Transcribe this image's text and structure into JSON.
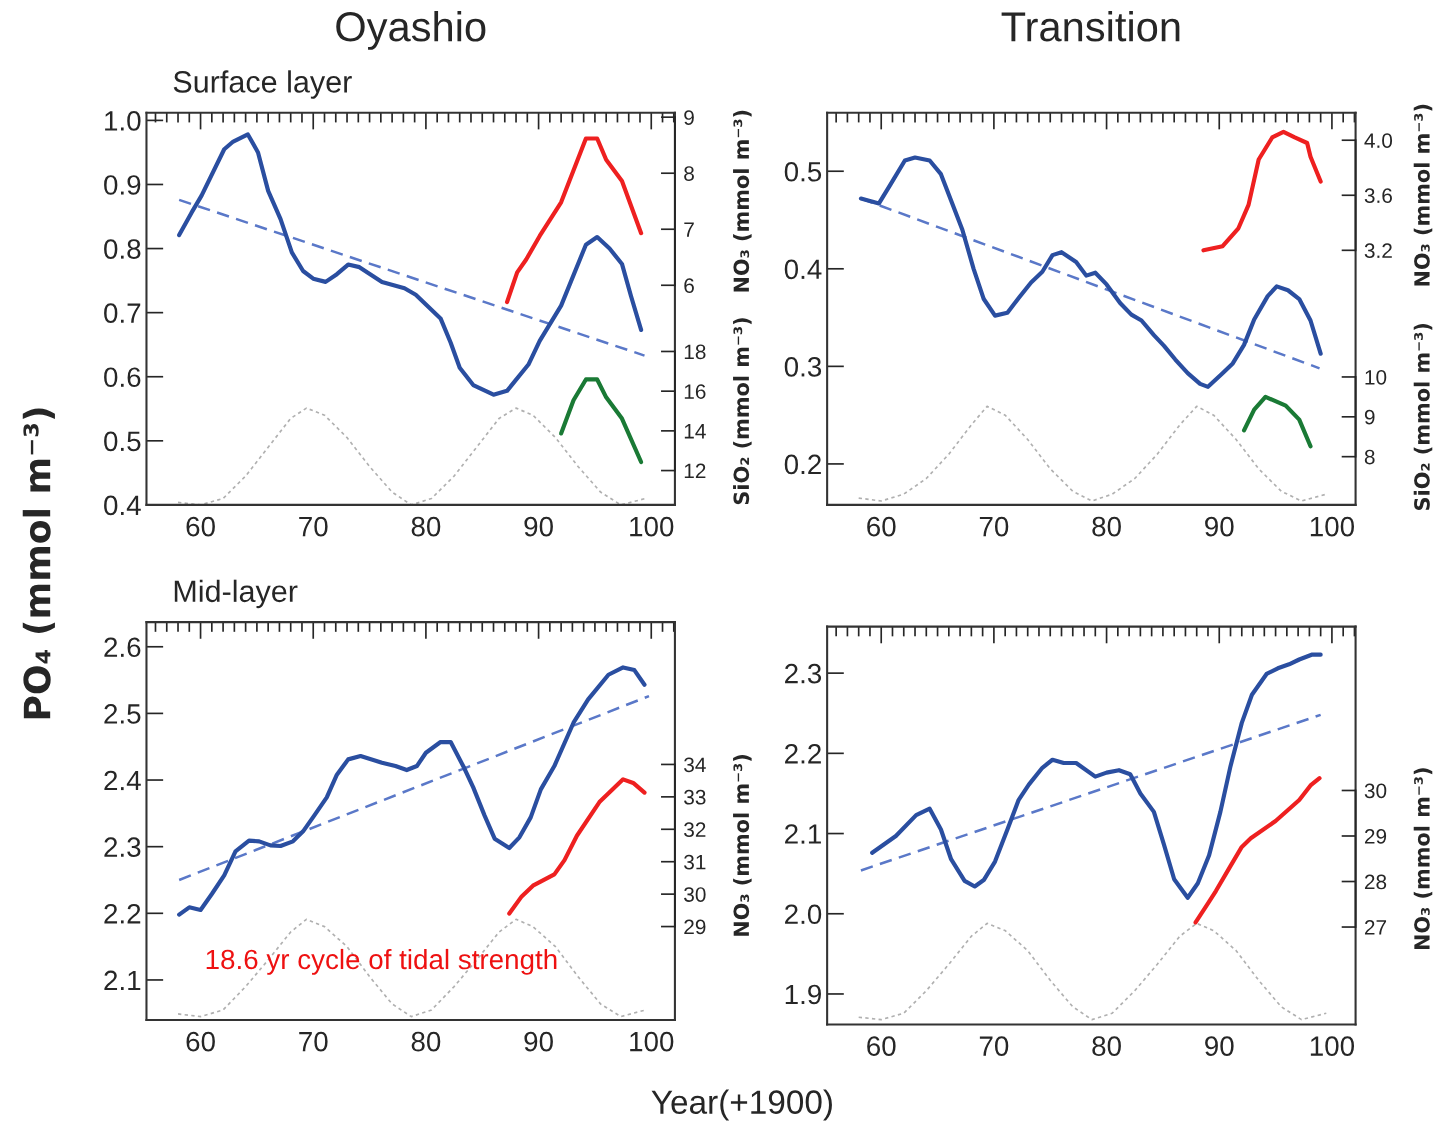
{
  "chart_data": [
    {
      "type": "line",
      "title": "Oyashio",
      "subtitle": "Surface layer",
      "ylabel": "PO₄ (mmol m⁻³)",
      "y2label": "NO₃ (mmol m⁻³)",
      "y3label": "SiO₂ (mmol m⁻³)",
      "xlim": [
        55.2,
        102.1
      ],
      "xticks": [
        60,
        70,
        80,
        90,
        100
      ],
      "ylim": [
        0.4,
        1.012
      ],
      "yticks": [
        0.4,
        0.5,
        0.6,
        0.7,
        0.8,
        0.9,
        {
          "value": 1.0,
          "label": "1.0"
        }
      ],
      "y2lim": [
        2.08,
        9.08
      ],
      "y2ticks": [
        6,
        7,
        8,
        9
      ],
      "y3lim": [
        10.27,
        30.03
      ],
      "y3ticks": [
        12,
        14,
        16,
        18
      ],
      "series": [
        {
          "color": "#b0b0b0",
          "line_style": "dotted",
          "x": [
            58.0,
            60.0,
            62.0,
            64.0,
            66.0,
            68.0,
            69.4,
            71.0,
            73.0,
            75.0,
            77.0,
            78.7,
            80.5,
            82.5,
            84.5,
            86.5,
            88.0,
            89.5,
            91.5,
            93.5,
            95.5,
            97.3,
            99.5
          ],
          "values": [
            0.404,
            0.4,
            0.41,
            0.445,
            0.49,
            0.535,
            0.551,
            0.54,
            0.505,
            0.46,
            0.42,
            0.4,
            0.41,
            0.445,
            0.49,
            0.535,
            0.551,
            0.54,
            0.505,
            0.46,
            0.42,
            0.4,
            0.41
          ]
        },
        {
          "color": "#5a78c8",
          "line_style": "dashed",
          "x": [
            58.1,
            99.4
          ],
          "values": [
            0.876,
            0.633
          ]
        },
        {
          "color": "#2a4ea0",
          "line_style": "solid",
          "x": [
            58.1,
            59.2,
            60.1,
            62.1,
            62.9,
            64.2,
            65.1,
            66.0,
            67.1,
            68.1,
            69.1,
            70.0,
            71.1,
            72.1,
            73.1,
            74.1,
            76.1,
            78.1,
            79.1,
            81.3,
            82.2,
            83.0,
            84.2,
            86.0,
            87.2,
            89.1,
            90.1,
            92.0,
            94.2,
            95.2,
            96.3,
            97.4,
            98.2,
            99.1
          ],
          "values": [
            0.821,
            0.856,
            0.883,
            0.955,
            0.967,
            0.978,
            0.95,
            0.89,
            0.846,
            0.794,
            0.765,
            0.753,
            0.748,
            0.76,
            0.775,
            0.771,
            0.748,
            0.738,
            0.728,
            0.691,
            0.653,
            0.614,
            0.587,
            0.572,
            0.578,
            0.619,
            0.656,
            0.711,
            0.806,
            0.818,
            0.8,
            0.776,
            0.726,
            0.673
          ]
        },
        {
          "color": "#ee2020",
          "line_style": "solid",
          "axis": "y2",
          "x": [
            87.2,
            88.1,
            88.9,
            90.1,
            92.0,
            94.2,
            95.2,
            96.0,
            97.4,
            99.1
          ],
          "values": [
            5.7,
            6.23,
            6.46,
            6.88,
            7.48,
            8.62,
            8.62,
            8.24,
            7.86,
            6.93
          ]
        },
        {
          "color": "#1a7a35",
          "line_style": "solid",
          "axis": "y3",
          "x": [
            92.0,
            93.1,
            94.2,
            95.2,
            96.0,
            97.4,
            99.1
          ],
          "values": [
            13.87,
            15.54,
            16.59,
            16.59,
            15.69,
            14.62,
            12.43
          ]
        }
      ]
    },
    {
      "type": "line",
      "title": "Transition",
      "y2label": "NO₃ (mmol m⁻³)",
      "y3label": "SiO₂ (mmol m⁻³)",
      "xlim": [
        55.2,
        102.1
      ],
      "xticks": [
        60,
        70,
        80,
        90,
        100
      ],
      "ylim": [
        0.158,
        0.56
      ],
      "yticks": [
        0.2,
        0.3,
        0.4,
        0.5
      ],
      "y2lim": [
        1.35,
        4.2
      ],
      "y2ticks": [
        3.2,
        3.6,
        {
          "value": 4.0,
          "label": "4.0"
        }
      ],
      "y3lim": [
        6.79,
        16.63
      ],
      "y3ticks": [
        8,
        9,
        10
      ],
      "series": [
        {
          "color": "#b0b0b0",
          "line_style": "dotted",
          "x": [
            58.0,
            60.0,
            62.0,
            64.0,
            66.0,
            68.0,
            69.4,
            71.0,
            73.0,
            75.0,
            77.0,
            78.7,
            80.5,
            82.5,
            84.5,
            86.5,
            88.0,
            89.5,
            91.5,
            93.5,
            95.5,
            97.3,
            99.5
          ],
          "values": [
            0.165,
            0.162,
            0.169,
            0.185,
            0.21,
            0.24,
            0.259,
            0.25,
            0.225,
            0.195,
            0.172,
            0.162,
            0.169,
            0.185,
            0.21,
            0.24,
            0.259,
            0.25,
            0.225,
            0.195,
            0.172,
            0.162,
            0.169
          ]
        },
        {
          "color": "#5a78c8",
          "line_style": "dashed",
          "x": [
            58.2,
            98.9
          ],
          "values": [
            0.472,
            0.298
          ]
        },
        {
          "color": "#2a4ea0",
          "line_style": "solid",
          "x": [
            58.2,
            59.8,
            60.8,
            62.1,
            63.0,
            64.3,
            65.3,
            66.2,
            67.2,
            68.2,
            69.1,
            70.1,
            71.2,
            72.2,
            73.3,
            74.3,
            75.2,
            76.0,
            77.3,
            78.2,
            79.0,
            80.0,
            81.2,
            82.2,
            83.1,
            84.2,
            85.1,
            86.1,
            87.2,
            88.3,
            89.0,
            90.2,
            91.2,
            92.2,
            93.1,
            94.3,
            95.1,
            96.1,
            97.1,
            98.1,
            99.0
          ],
          "values": [
            0.472,
            0.467,
            0.486,
            0.511,
            0.514,
            0.511,
            0.497,
            0.47,
            0.44,
            0.4,
            0.369,
            0.352,
            0.355,
            0.37,
            0.386,
            0.397,
            0.414,
            0.417,
            0.407,
            0.393,
            0.396,
            0.384,
            0.365,
            0.353,
            0.347,
            0.332,
            0.321,
            0.307,
            0.293,
            0.282,
            0.279,
            0.292,
            0.303,
            0.322,
            0.348,
            0.372,
            0.382,
            0.378,
            0.369,
            0.347,
            0.313
          ]
        },
        {
          "color": "#ee2020",
          "line_style": "solid",
          "axis": "y2",
          "x": [
            88.6,
            90.3,
            91.7,
            92.6,
            93.5,
            94.7,
            95.7,
            96.7,
            97.8,
            98.1,
            99.0
          ],
          "values": [
            3.2,
            3.23,
            3.36,
            3.53,
            3.86,
            4.02,
            4.06,
            4.02,
            3.98,
            3.88,
            3.7
          ]
        },
        {
          "color": "#1a7a35",
          "line_style": "solid",
          "axis": "y3",
          "x": [
            92.2,
            93.1,
            94.1,
            95.9,
            97.1,
            98.1
          ],
          "values": [
            8.66,
            9.18,
            9.5,
            9.28,
            8.93,
            8.26
          ]
        }
      ]
    },
    {
      "type": "line",
      "subtitle": "Mid-layer",
      "xlabel": "Year(+1900)",
      "y2label": "NO₃ (mmol m⁻³)",
      "annotations": [
        "18.6 yr cycle of tidal strength"
      ],
      "xlim": [
        55.2,
        102.1
      ],
      "xticks": [
        60,
        70,
        80,
        90,
        100
      ],
      "ylim": [
        2.04,
        2.637
      ],
      "yticks": [
        2.1,
        2.2,
        2.3,
        2.4,
        2.5,
        2.6
      ],
      "y2lim": [
        26.12,
        38.39
      ],
      "y2ticks": [
        29,
        30,
        31,
        32,
        33,
        34
      ],
      "series": [
        {
          "color": "#b0b0b0",
          "line_style": "dotted",
          "x": [
            58.0,
            60.0,
            62.0,
            64.0,
            66.0,
            68.0,
            69.4,
            71.0,
            73.0,
            75.0,
            77.0,
            78.7,
            80.5,
            82.5,
            84.5,
            86.5,
            88.0,
            89.5,
            91.5,
            93.5,
            95.5,
            97.3,
            99.5
          ],
          "values": [
            2.049,
            2.045,
            2.055,
            2.09,
            2.13,
            2.172,
            2.191,
            2.18,
            2.15,
            2.105,
            2.064,
            2.045,
            2.055,
            2.09,
            2.13,
            2.172,
            2.191,
            2.18,
            2.15,
            2.105,
            2.064,
            2.045,
            2.055
          ]
        },
        {
          "color": "#5a78c8",
          "line_style": "dashed",
          "x": [
            58.1,
            99.8
          ],
          "values": [
            2.25,
            2.526
          ]
        },
        {
          "color": "#2a4ea0",
          "line_style": "solid",
          "x": [
            58.1,
            59.0,
            60.0,
            61.0,
            62.1,
            63.1,
            64.3,
            65.2,
            66.2,
            67.1,
            68.2,
            69.1,
            70.1,
            71.2,
            72.1,
            73.1,
            74.2,
            76.1,
            77.3,
            78.3,
            79.2,
            80.0,
            81.3,
            82.2,
            83.4,
            84.2,
            85.2,
            86.1,
            87.4,
            88.3,
            89.3,
            90.2,
            91.4,
            93.1,
            94.4,
            96.2,
            97.5,
            98.5,
            99.4
          ],
          "values": [
            2.198,
            2.209,
            2.205,
            2.229,
            2.257,
            2.293,
            2.309,
            2.308,
            2.302,
            2.301,
            2.308,
            2.323,
            2.347,
            2.374,
            2.408,
            2.431,
            2.436,
            2.426,
            2.421,
            2.415,
            2.421,
            2.441,
            2.457,
            2.457,
            2.418,
            2.389,
            2.347,
            2.312,
            2.298,
            2.314,
            2.344,
            2.386,
            2.421,
            2.486,
            2.521,
            2.558,
            2.569,
            2.565,
            2.543
          ]
        },
        {
          "color": "#ee2020",
          "line_style": "solid",
          "axis": "y2",
          "x": [
            87.4,
            88.5,
            89.5,
            91.4,
            92.3,
            93.4,
            95.4,
            97.5,
            98.4,
            99.4
          ],
          "values": [
            29.4,
            29.93,
            30.26,
            30.61,
            31.05,
            31.8,
            32.84,
            33.54,
            33.43,
            33.13
          ]
        }
      ]
    },
    {
      "type": "line",
      "y2label": "NO₃ (mmol m⁻³)",
      "xlim": [
        55.2,
        102.1
      ],
      "xticks": [
        60,
        70,
        80,
        90,
        100
      ],
      "ylim": [
        1.862,
        2.358
      ],
      "yticks": [
        1.9,
        {
          "value": 2.0,
          "label": "2.0"
        },
        2.1,
        2.2,
        2.3
      ],
      "y2lim": [
        24.86,
        33.6
      ],
      "y2ticks": [
        27,
        28,
        29,
        30
      ],
      "series": [
        {
          "color": "#b0b0b0",
          "line_style": "dotted",
          "x": [
            58.0,
            60.0,
            62.0,
            64.0,
            66.0,
            68.0,
            69.4,
            71.0,
            73.0,
            75.0,
            77.0,
            78.7,
            80.5,
            82.5,
            84.5,
            86.5,
            88.0,
            89.5,
            91.5,
            93.5,
            95.5,
            97.3,
            99.5
          ],
          "values": [
            1.871,
            1.868,
            1.876,
            1.904,
            1.937,
            1.972,
            1.988,
            1.979,
            1.954,
            1.917,
            1.884,
            1.868,
            1.876,
            1.904,
            1.937,
            1.972,
            1.988,
            1.979,
            1.954,
            1.917,
            1.884,
            1.868,
            1.876
          ]
        },
        {
          "color": "#5a78c8",
          "line_style": "dashed",
          "x": [
            58.2,
            99.0
          ],
          "values": [
            2.054,
            2.248
          ]
        },
        {
          "color": "#2a4ea0",
          "line_style": "solid",
          "x": [
            59.2,
            61.3,
            63.1,
            64.3,
            65.3,
            66.2,
            67.4,
            68.3,
            69.1,
            70.1,
            71.2,
            72.2,
            73.1,
            74.3,
            75.2,
            76.2,
            77.3,
            79.0,
            80.0,
            81.1,
            82.1,
            83.0,
            84.2,
            85.1,
            86.0,
            87.2,
            88.1,
            89.1,
            90.1,
            91.0,
            92.0,
            92.9,
            94.2,
            95.2,
            96.2,
            97.1,
            98.2,
            99.0
          ],
          "values": [
            2.076,
            2.097,
            2.123,
            2.131,
            2.105,
            2.068,
            2.041,
            2.034,
            2.042,
            2.065,
            2.105,
            2.142,
            2.161,
            2.182,
            2.192,
            2.188,
            2.188,
            2.171,
            2.176,
            2.179,
            2.174,
            2.15,
            2.127,
            2.086,
            2.043,
            2.02,
            2.038,
            2.073,
            2.127,
            2.184,
            2.238,
            2.273,
            2.299,
            2.306,
            2.311,
            2.317,
            2.323,
            2.323
          ]
        },
        {
          "color": "#ee2020",
          "line_style": "solid",
          "axis": "y2",
          "x": [
            87.9,
            89.0,
            89.7,
            90.9,
            92.0,
            92.8,
            95.0,
            97.1,
            98.1,
            98.9
          ],
          "values": [
            27.1,
            27.52,
            27.79,
            28.3,
            28.76,
            28.95,
            29.33,
            29.79,
            30.11,
            30.27
          ]
        }
      ]
    }
  ]
}
